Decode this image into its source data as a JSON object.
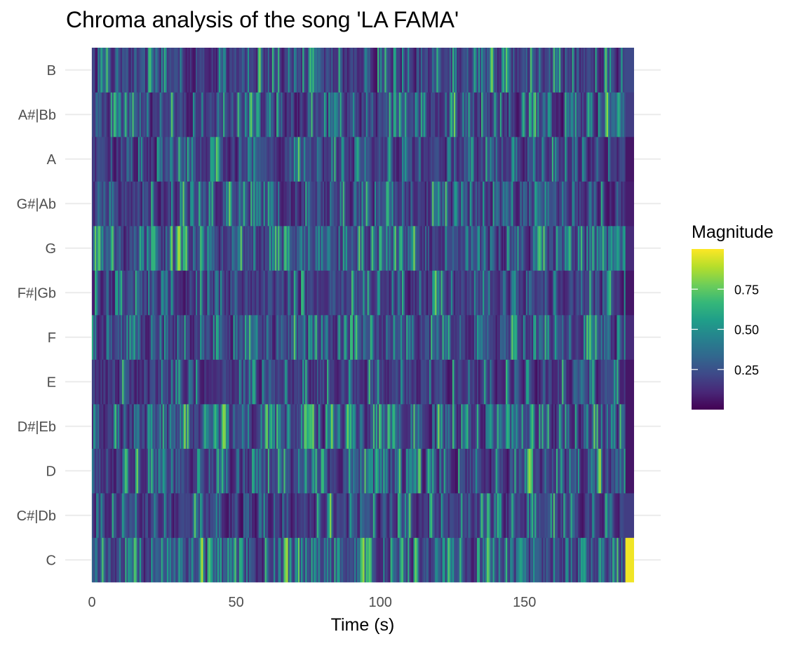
{
  "chart_data": {
    "type": "heatmap",
    "title": "Chroma analysis of the song 'LA FAMA'",
    "xlabel": "Time (s)",
    "ylabel": "",
    "x_ticks": [
      0,
      50,
      100,
      150
    ],
    "xlim": [
      0,
      188
    ],
    "y_categories": [
      "C",
      "C#|Db",
      "D",
      "D#|Eb",
      "E",
      "F",
      "F#|Gb",
      "G",
      "G#|Ab",
      "A",
      "A#|Bb",
      "B"
    ],
    "time_resolution_s": 0.5,
    "grid": true,
    "colormap": "viridis",
    "color_stops": [
      "#440154",
      "#482878",
      "#3E4A89",
      "#31688E",
      "#26828E",
      "#1F9E89",
      "#35B779",
      "#6ECE58",
      "#B5DE2B",
      "#FDE725"
    ],
    "legend": {
      "title": "Magnitude",
      "position": "right",
      "ticks": [
        0.25,
        0.5,
        0.75
      ],
      "tick_labels": [
        "0.25",
        "0.50",
        "0.75"
      ],
      "range": [
        0,
        1
      ]
    },
    "notes_mean_magnitude": {
      "C": 0.4,
      "C#|Db": 0.18,
      "D": 0.28,
      "D#|Eb": 0.34,
      "E": 0.17,
      "F": 0.36,
      "F#|Gb": 0.2,
      "G": 0.38,
      "G#|Ab": 0.28,
      "A": 0.17,
      "A#|Bb": 0.3,
      "B": 0.22
    },
    "end_segment": {
      "start_s": 185,
      "end_s": 188,
      "values": {
        "C": 0.98,
        "C#|Db": 0.18,
        "D": 0.06,
        "D#|Eb": 0.06,
        "E": 0.06,
        "F": 0.12,
        "F#|Gb": 0.06,
        "G": 0.12,
        "G#|Ab": 0.08,
        "A": 0.06,
        "A#|Bb": 0.18,
        "B": 0.22
      }
    }
  }
}
